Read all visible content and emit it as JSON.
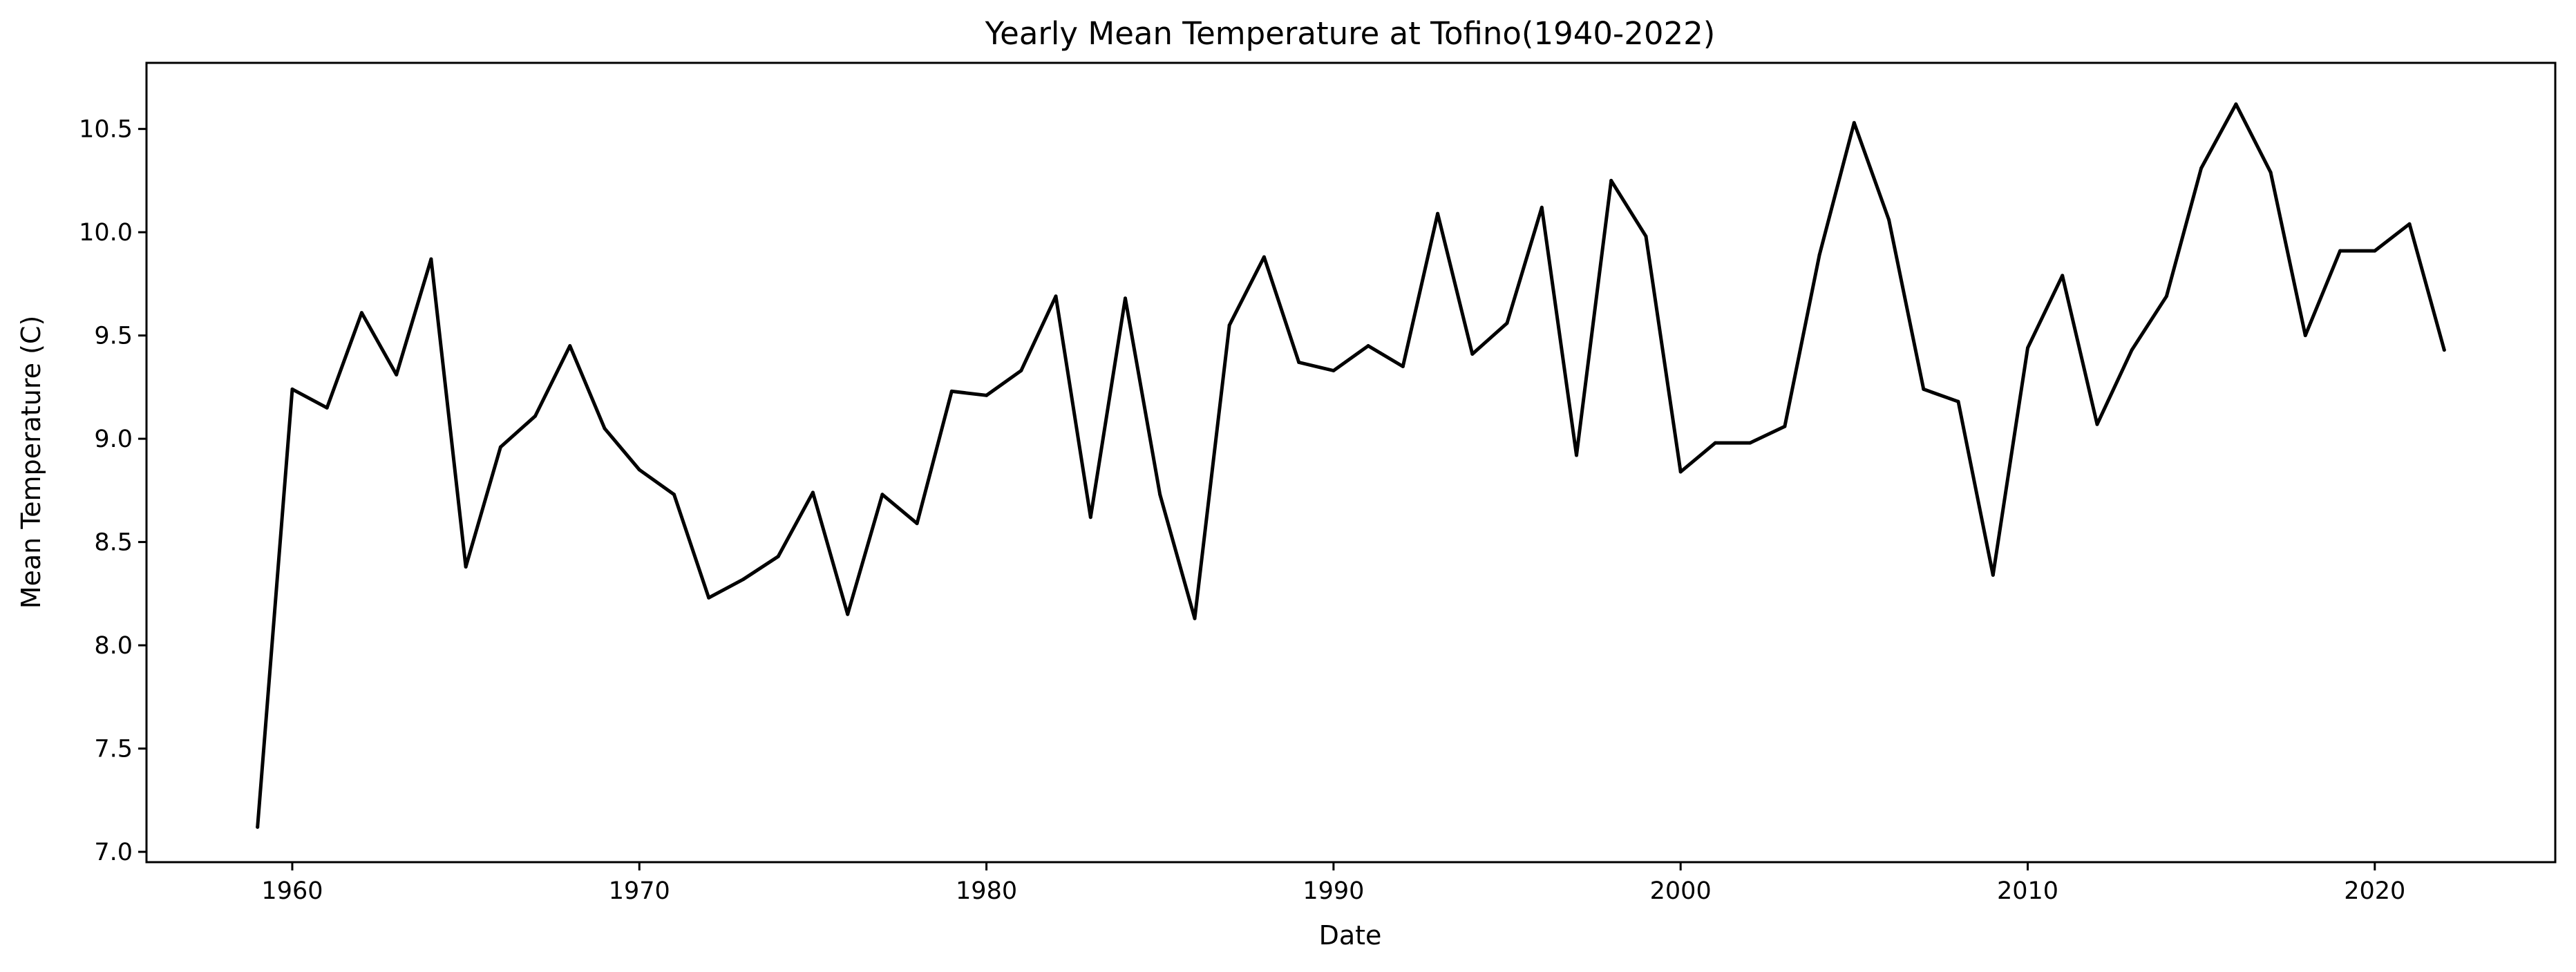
{
  "chart_data": {
    "type": "line",
    "title": "Yearly Mean Temperature at Tofino(1940-2022)",
    "xlabel": "Date",
    "ylabel": "Mean Temperature (C)",
    "xlim": [
      1955.8,
      2025.2
    ],
    "ylim": [
      6.95,
      10.82
    ],
    "xticks": [
      1960,
      1970,
      1980,
      1990,
      2000,
      2010,
      2020
    ],
    "yticks": [
      7.0,
      7.5,
      8.0,
      8.5,
      9.0,
      9.5,
      10.0,
      10.5
    ],
    "ytick_labels": [
      "7.0",
      "7.5",
      "8.0",
      "8.5",
      "9.0",
      "9.5",
      "10.0",
      "10.5"
    ],
    "grid": false,
    "legend": "none",
    "line_color": "#000000",
    "x": [
      1959,
      1960,
      1961,
      1962,
      1963,
      1964,
      1965,
      1966,
      1967,
      1968,
      1969,
      1970,
      1971,
      1972,
      1973,
      1974,
      1975,
      1976,
      1977,
      1978,
      1979,
      1980,
      1981,
      1982,
      1983,
      1984,
      1985,
      1986,
      1987,
      1988,
      1989,
      1990,
      1991,
      1992,
      1993,
      1994,
      1995,
      1996,
      1997,
      1998,
      1999,
      2000,
      2001,
      2002,
      2003,
      2004,
      2005,
      2006,
      2007,
      2008,
      2009,
      2010,
      2011,
      2012,
      2013,
      2014,
      2015,
      2016,
      2017,
      2018,
      2019,
      2020,
      2021,
      2022
    ],
    "y": [
      7.12,
      9.24,
      9.15,
      9.61,
      9.31,
      9.87,
      8.38,
      8.96,
      9.11,
      9.45,
      9.05,
      8.85,
      8.73,
      8.23,
      8.32,
      8.43,
      8.74,
      8.15,
      8.73,
      8.59,
      9.23,
      9.21,
      9.33,
      9.69,
      8.62,
      9.68,
      8.73,
      8.13,
      9.55,
      9.88,
      9.37,
      9.33,
      9.45,
      9.35,
      10.09,
      9.41,
      9.56,
      10.12,
      8.92,
      10.25,
      9.98,
      8.84,
      8.98,
      8.98,
      9.06,
      9.89,
      10.53,
      10.06,
      9.24,
      9.18,
      8.34,
      9.44,
      9.79,
      9.07,
      9.43,
      9.69,
      10.31,
      10.62,
      10.29,
      9.5,
      9.91,
      9.91,
      10.04,
      9.43
    ]
  }
}
